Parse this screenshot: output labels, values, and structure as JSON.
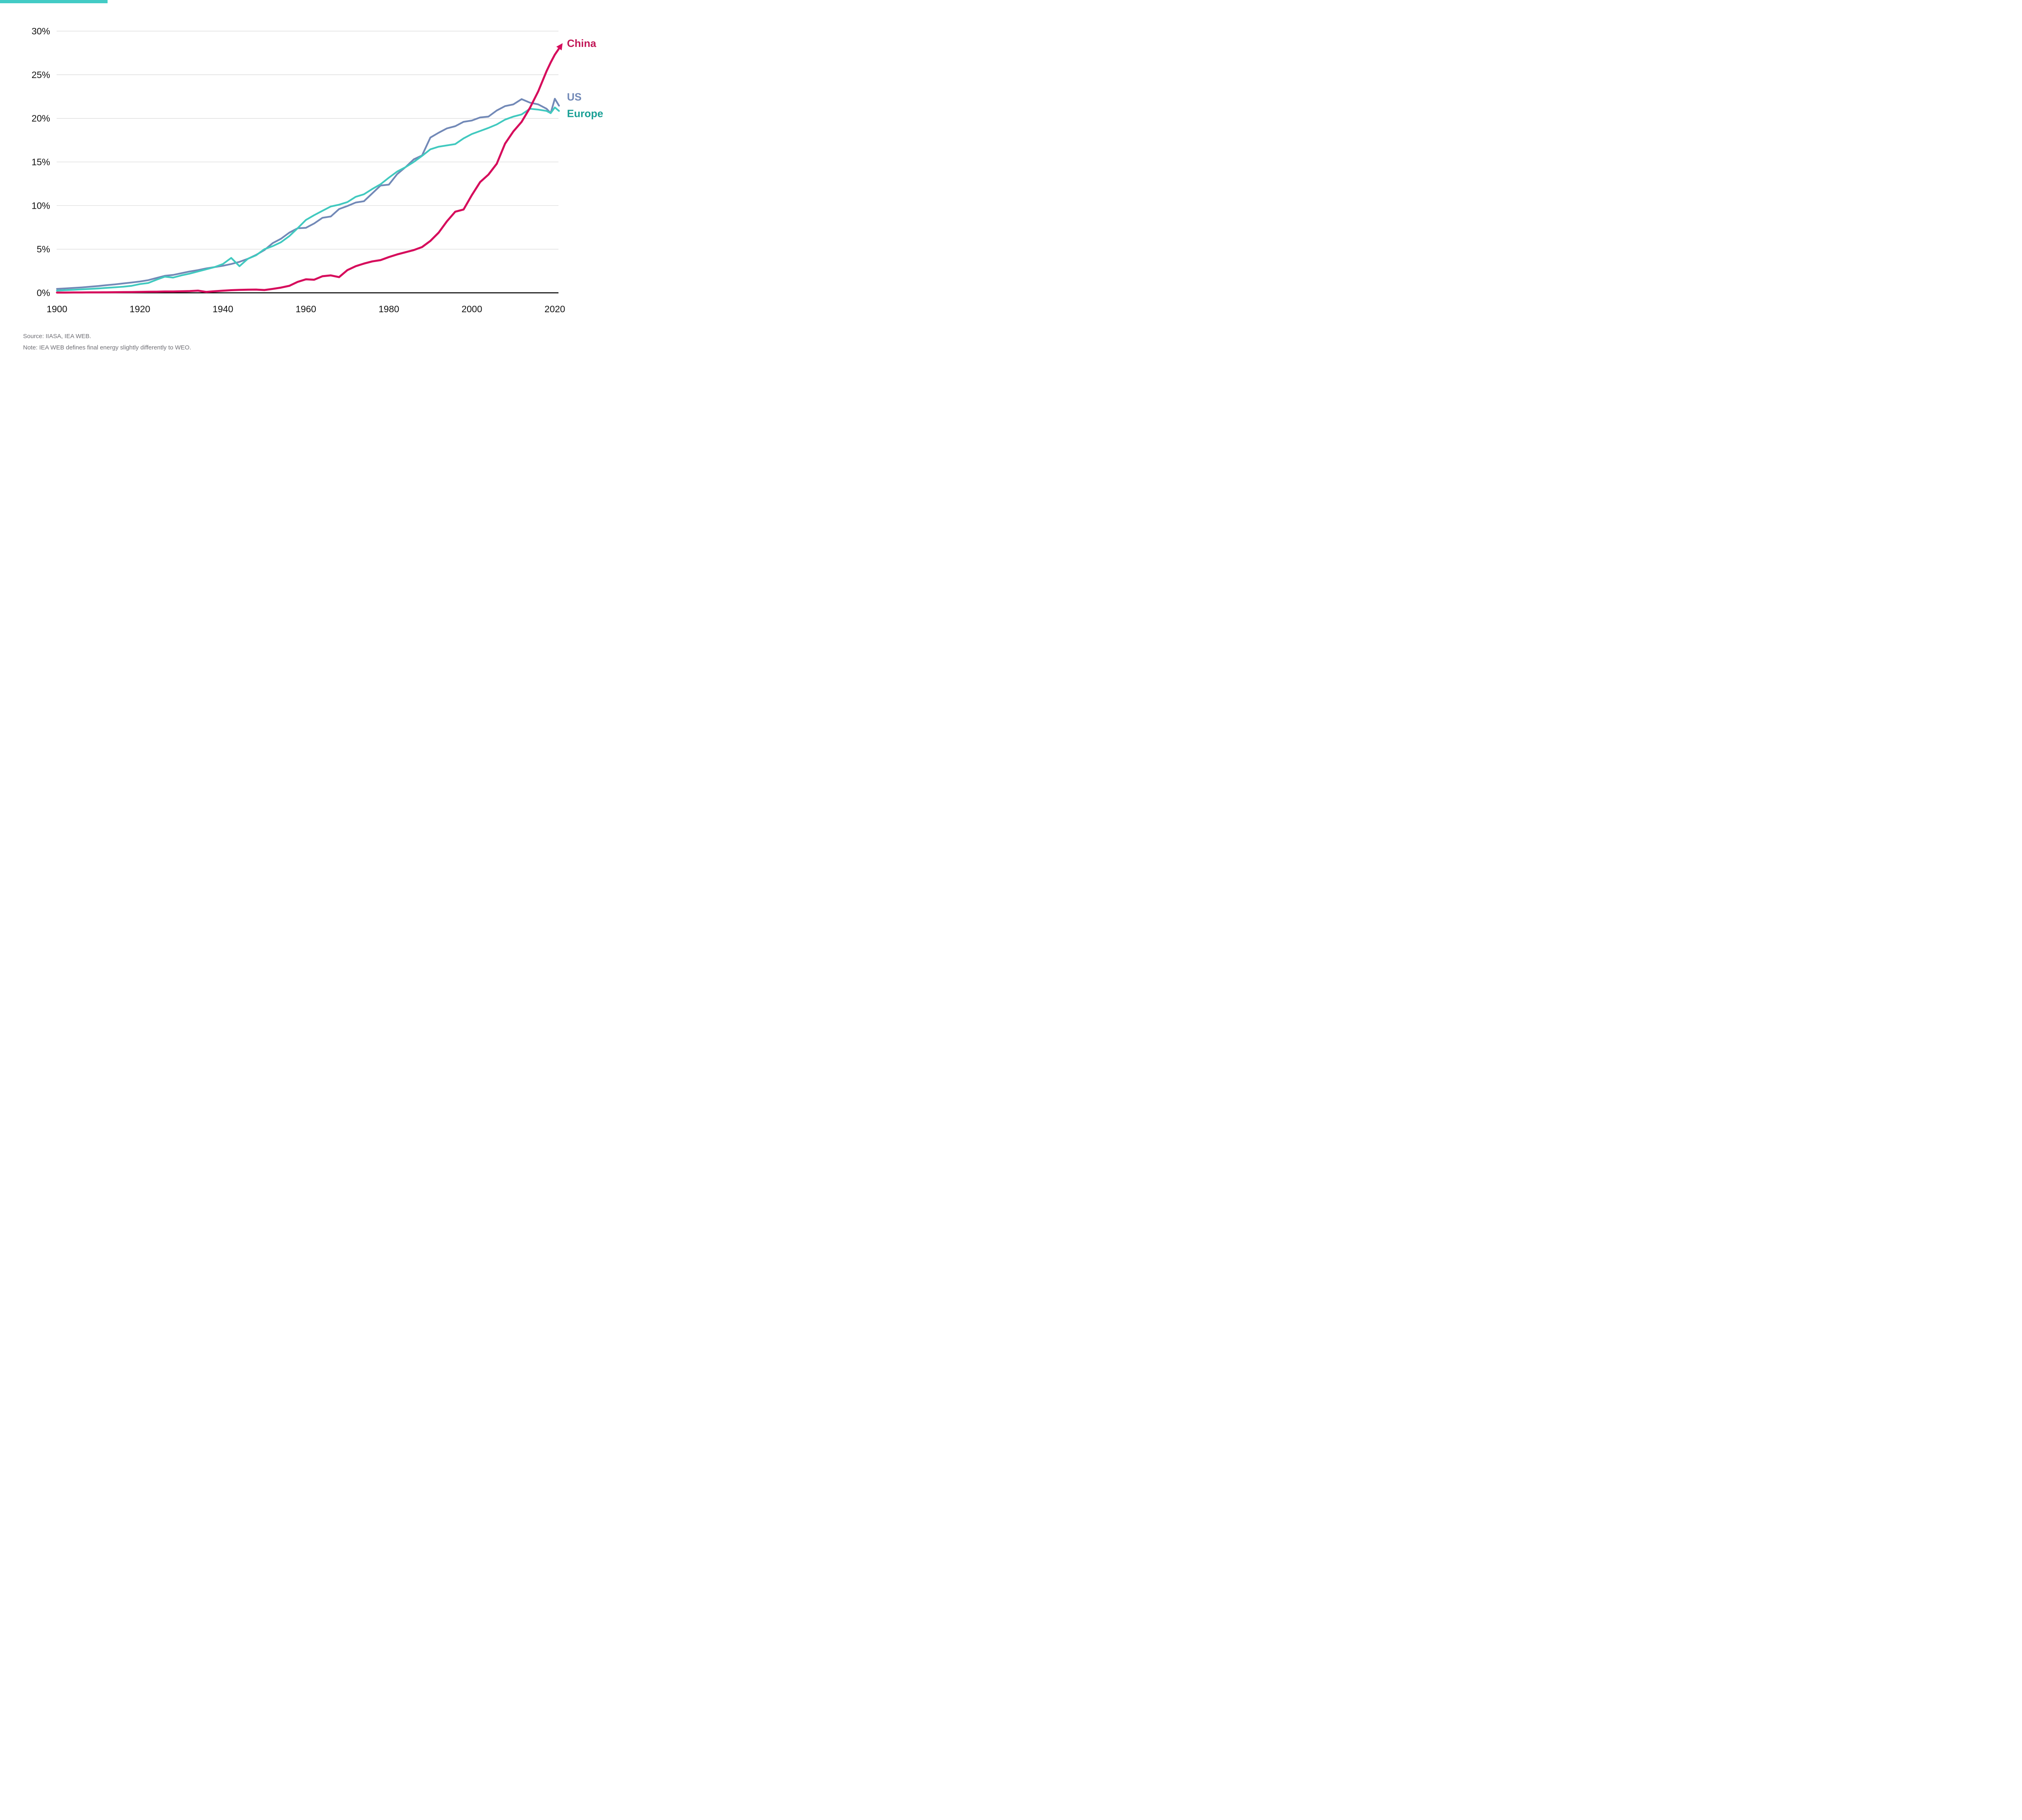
{
  "accent_bar": {
    "color": "#43CBC5"
  },
  "footnotes": {
    "source": "Source: IIASA, IEA WEB.",
    "note": "Note: IEA WEB defines final energy slightly differently to WEO."
  },
  "chart_data": {
    "type": "line",
    "title": "",
    "xlabel": "",
    "ylabel": "",
    "grid": true,
    "ylim": [
      0,
      30
    ],
    "xlim": [
      1900,
      2021
    ],
    "legend_position": "right-of-line-ends",
    "axis_line_color": "#000000",
    "gridline_color": "#d8d8d8",
    "y_ticks": [
      {
        "value": 0,
        "label": "0%"
      },
      {
        "value": 5,
        "label": "5%"
      },
      {
        "value": 10,
        "label": "10%"
      },
      {
        "value": 15,
        "label": "15%"
      },
      {
        "value": 20,
        "label": "20%"
      },
      {
        "value": 25,
        "label": "25%"
      },
      {
        "value": 30,
        "label": "30%"
      }
    ],
    "x_ticks": [
      {
        "value": 1900,
        "label": "1900"
      },
      {
        "value": 1920,
        "label": "1920"
      },
      {
        "value": 1940,
        "label": "1940"
      },
      {
        "value": 1960,
        "label": "1960"
      },
      {
        "value": 1980,
        "label": "1980"
      },
      {
        "value": 2000,
        "label": "2000"
      },
      {
        "value": 2020,
        "label": "2020"
      }
    ],
    "years": [
      1900,
      1902,
      1904,
      1906,
      1908,
      1910,
      1912,
      1914,
      1916,
      1918,
      1920,
      1922,
      1924,
      1926,
      1928,
      1930,
      1932,
      1934,
      1936,
      1938,
      1940,
      1942,
      1944,
      1946,
      1948,
      1950,
      1952,
      1954,
      1956,
      1958,
      1960,
      1962,
      1964,
      1966,
      1968,
      1970,
      1972,
      1974,
      1976,
      1978,
      1980,
      1982,
      1984,
      1986,
      1988,
      1990,
      1992,
      1994,
      1996,
      1998,
      2000,
      2002,
      2004,
      2006,
      2008,
      2010,
      2012,
      2014,
      2016,
      2018,
      2019,
      2020,
      2021
    ],
    "series": [
      {
        "name": "US",
        "color": "#7289B7",
        "label_color": "#7289B7",
        "arrow_end": false,
        "values": [
          0.45,
          0.5,
          0.56,
          0.62,
          0.7,
          0.78,
          0.88,
          0.97,
          1.08,
          1.18,
          1.3,
          1.45,
          1.7,
          1.95,
          2.05,
          2.25,
          2.45,
          2.6,
          2.8,
          2.95,
          3.1,
          3.3,
          3.55,
          3.9,
          4.35,
          4.9,
          5.7,
          6.2,
          6.9,
          7.4,
          7.45,
          7.95,
          8.6,
          8.75,
          9.6,
          9.95,
          10.35,
          10.5,
          11.4,
          12.3,
          12.4,
          13.6,
          14.4,
          15.3,
          15.75,
          17.8,
          18.35,
          18.85,
          19.1,
          19.6,
          19.75,
          20.1,
          20.2,
          20.9,
          21.4,
          21.6,
          22.2,
          21.8,
          21.6,
          21.1,
          20.6,
          22.25,
          21.45
        ]
      },
      {
        "name": "Europe",
        "color": "#41C9BF",
        "label_color": "#1AA096",
        "arrow_end": false,
        "values": [
          0.25,
          0.3,
          0.35,
          0.4,
          0.45,
          0.5,
          0.57,
          0.63,
          0.7,
          0.8,
          1.0,
          1.12,
          1.5,
          1.85,
          1.75,
          2.0,
          2.2,
          2.45,
          2.7,
          2.95,
          3.3,
          4.0,
          3.05,
          3.9,
          4.3,
          5.0,
          5.35,
          5.8,
          6.5,
          7.4,
          8.35,
          8.9,
          9.4,
          9.9,
          10.1,
          10.4,
          11.0,
          11.3,
          11.9,
          12.45,
          13.2,
          13.9,
          14.4,
          15.0,
          15.7,
          16.45,
          16.75,
          16.9,
          17.05,
          17.7,
          18.2,
          18.55,
          18.9,
          19.3,
          19.85,
          20.2,
          20.45,
          21.1,
          21.0,
          20.85,
          20.6,
          21.25,
          20.85
        ]
      },
      {
        "name": "China",
        "color": "#D60C5C",
        "label_color": "#C11656",
        "arrow_end": true,
        "values": [
          0.03,
          0.03,
          0.04,
          0.04,
          0.05,
          0.05,
          0.06,
          0.07,
          0.08,
          0.09,
          0.1,
          0.12,
          0.13,
          0.15,
          0.15,
          0.17,
          0.2,
          0.25,
          0.1,
          0.18,
          0.24,
          0.3,
          0.34,
          0.36,
          0.37,
          0.32,
          0.45,
          0.6,
          0.8,
          1.25,
          1.55,
          1.5,
          1.9,
          2.0,
          1.8,
          2.6,
          3.05,
          3.35,
          3.6,
          3.75,
          4.1,
          4.4,
          4.65,
          4.9,
          5.25,
          5.95,
          6.9,
          8.2,
          9.3,
          9.55,
          11.2,
          12.7,
          13.55,
          14.8,
          17.1,
          18.5,
          19.6,
          21.2,
          23.1,
          25.4,
          26.4,
          27.3,
          28.0
        ]
      }
    ]
  }
}
